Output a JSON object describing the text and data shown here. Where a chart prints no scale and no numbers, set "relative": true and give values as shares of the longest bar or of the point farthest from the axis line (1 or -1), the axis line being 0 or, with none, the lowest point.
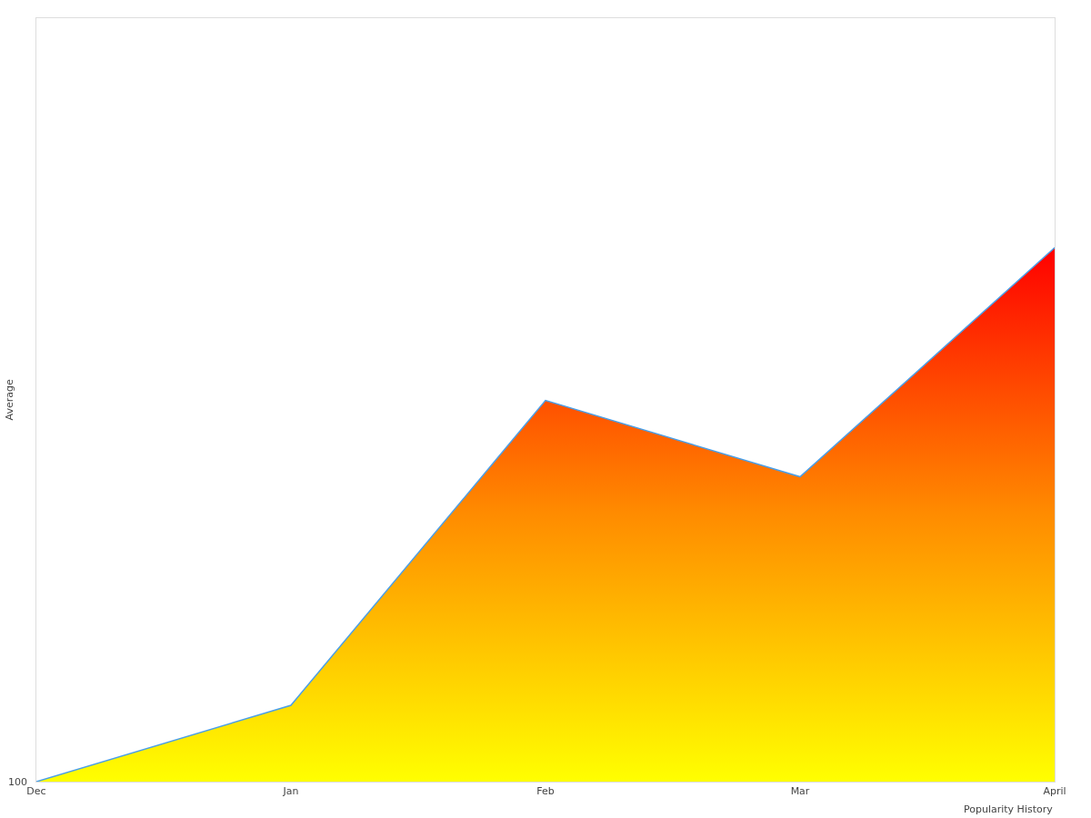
{
  "chart_data": {
    "type": "area",
    "relative": true,
    "categories": [
      "Dec",
      "Jan",
      "Feb",
      "Mar",
      "April"
    ],
    "xlabel": "Popularity History",
    "ylabel": "Average",
    "annotations": [
      "100"
    ],
    "series": [
      {
        "color": "#4a9fe8",
        "values": [
          0,
          0.143,
          0.714,
          0.571,
          1
        ]
      }
    ]
  }
}
